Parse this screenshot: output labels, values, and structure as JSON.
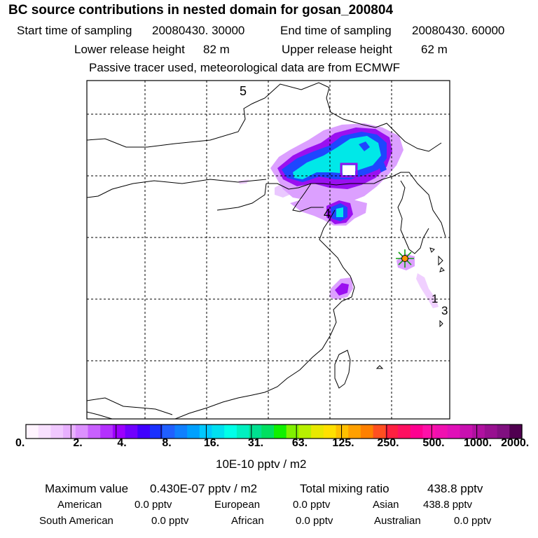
{
  "header": {
    "title": "BC  source contributions in nested domain for gosan_200804",
    "start_label": "Start time of sampling",
    "start_value": "20080430. 30000",
    "end_label": "End time of sampling",
    "end_value": "20080430. 60000",
    "lower_label": "Lower release height",
    "lower_value": "82 m",
    "upper_label": "Upper release height",
    "upper_value": "62 m",
    "note": "Passive tracer used, meteorological data are from ECMWF"
  },
  "map": {
    "numbers": [
      "5",
      "4",
      "1",
      "3"
    ],
    "colors": {
      "land_line": "#000000",
      "grid": "#000000",
      "cyan": "#00e8e8",
      "blue": "#1e46ff",
      "purple": "#9a10f0",
      "light_purple": "#dca0ff",
      "star_green": "#10a010",
      "star_orange": "#ff9400"
    }
  },
  "colorbar": {
    "colors": [
      "#fff4ff",
      "#f8e0ff",
      "#f0c8ff",
      "#e8b0ff",
      "#dc90ff",
      "#c860ff",
      "#b430ff",
      "#9c00ff",
      "#7000ff",
      "#4000ff",
      "#1a30ff",
      "#2060ff",
      "#1080ff",
      "#00a0ff",
      "#00c8ff",
      "#00e0f0",
      "#00ffe8",
      "#00f0c0",
      "#00e090",
      "#00e060",
      "#10f000",
      "#80f000",
      "#b8f000",
      "#e8e800",
      "#ffe000",
      "#ffc000",
      "#ffa000",
      "#ff8000",
      "#ff5020",
      "#ff2040",
      "#ff1060",
      "#ff0090",
      "#ff10a8",
      "#f010b0",
      "#e010b8",
      "#c810b0",
      "#b010a0",
      "#981090",
      "#801080",
      "#500050"
    ],
    "labels": [
      "0.",
      "2.",
      "4.",
      "8.",
      "16.",
      "31.",
      "63.",
      "125.",
      "250.",
      "500.",
      "1000.",
      "2000."
    ],
    "unit": "10E-10 pptv / m2"
  },
  "summary": {
    "max_label": "Maximum value",
    "max_value": "0.430E-07 pptv / m2",
    "total_label": "Total mixing ratio",
    "total_value": "438.8 pptv",
    "regions": [
      {
        "name": "American",
        "value": "0.0 pptv"
      },
      {
        "name": "European",
        "value": "0.0 pptv"
      },
      {
        "name": "Asian",
        "value": "438.8 pptv"
      },
      {
        "name": "South American",
        "value": "0.0 pptv"
      },
      {
        "name": "African",
        "value": "0.0 pptv"
      },
      {
        "name": "Australian",
        "value": "0.0 pptv"
      }
    ]
  }
}
